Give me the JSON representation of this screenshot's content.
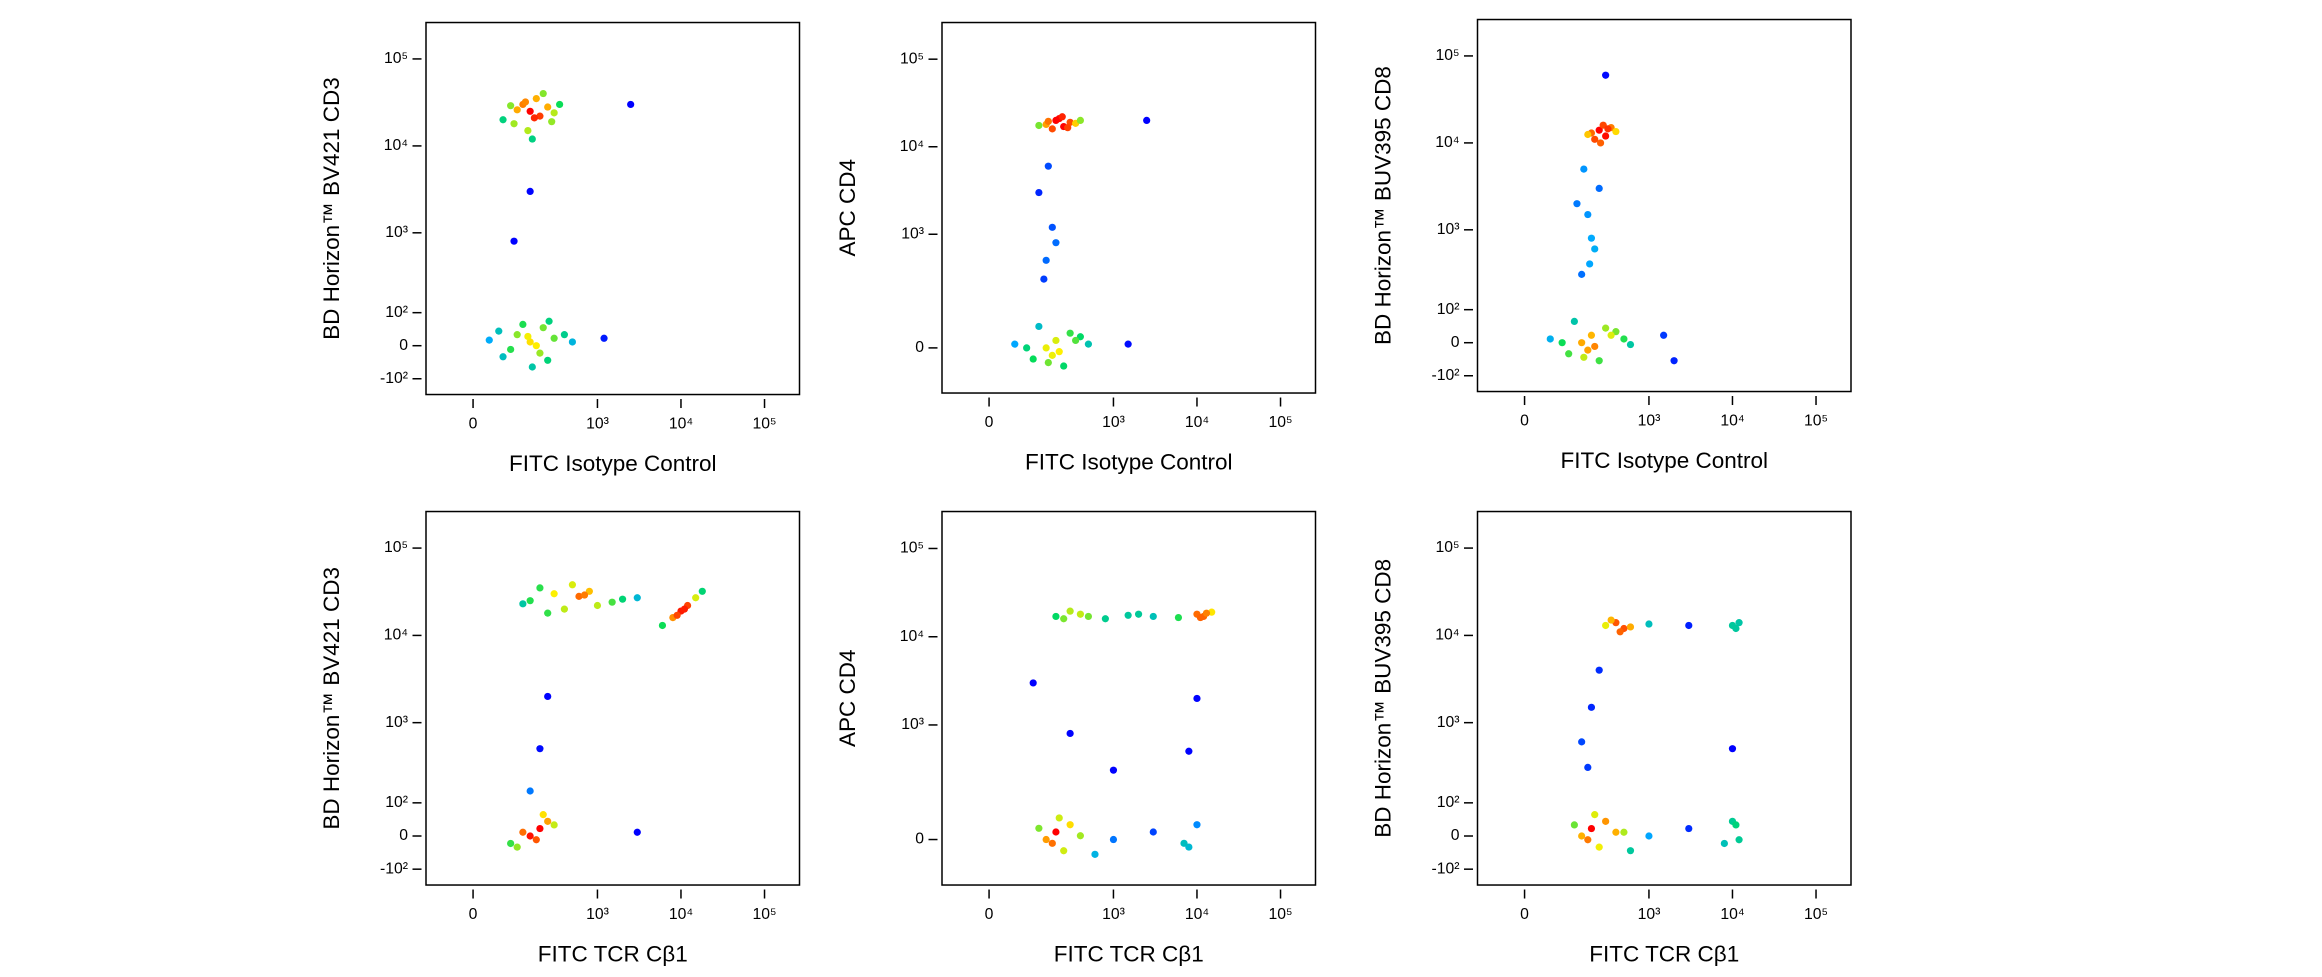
{
  "chart_data": [
    {
      "type": "scatter",
      "xlabel": "FITC Isotype Control",
      "ylabel": "BD Horizon™ BV421 CD3",
      "x": [
        150,
        120,
        200,
        90,
        250,
        180,
        60,
        300,
        140,
        220,
        100,
        170,
        130,
        280,
        80,
        160,
        350,
        150,
        100,
        200,
        50,
        300,
        250,
        120,
        180,
        80,
        400,
        30,
        220,
        160,
        500,
        140,
        60,
        260,
        2500,
        1200,
        90,
        150
      ],
      "values": [
        25000,
        30000,
        22000,
        18000,
        28000,
        35000,
        20000,
        24000,
        15000,
        40000,
        26000,
        21000,
        32000,
        19000,
        29000,
        12000,
        30000,
        10,
        30,
        -20,
        40,
        20,
        -40,
        60,
        0,
        -10,
        30,
        15,
        50,
        -60,
        10,
        25,
        -30,
        70,
        30000,
        20,
        800,
        3000
      ],
      "xlim": [
        -110,
        262144
      ],
      "ylim": [
        -170,
        262144
      ],
      "xticks": [
        0,
        {
          "value": 1000,
          "label": "10³"
        },
        {
          "value": 10000,
          "label": "10⁴"
        },
        {
          "value": 100000,
          "label": "10⁵"
        }
      ],
      "yticks": [
        {
          "value": -100,
          "label": "-10²"
        },
        0,
        {
          "value": 100,
          "label": "10²"
        },
        {
          "value": 1000,
          "label": "10³"
        },
        {
          "value": 10000,
          "label": "10⁴"
        },
        {
          "value": 100000,
          "label": "10⁵"
        }
      ]
    },
    {
      "type": "scatter",
      "xlabel": "FITC Isotype Control",
      "ylabel": "APC CD4",
      "x": [
        150,
        200,
        250,
        300,
        180,
        220,
        120,
        350,
        400,
        280,
        160,
        240,
        150,
        180,
        120,
        200,
        160,
        140,
        150,
        200,
        100,
        300,
        250,
        50,
        400,
        180,
        120,
        220,
        80,
        350,
        160,
        500,
        2500,
        1500
      ],
      "values": [
        18000,
        20000,
        17000,
        19000,
        16000,
        21000,
        17500,
        18500,
        20000,
        16500,
        19500,
        22000,
        500,
        1200,
        3000,
        800,
        6000,
        300,
        0,
        20,
        -30,
        40,
        -50,
        10,
        30,
        -20,
        60,
        -10,
        0,
        20,
        -40,
        10,
        20000,
        10
      ],
      "xlim": [
        -110,
        262144
      ],
      "ylim": [
        -150,
        262144
      ],
      "xticks": [
        0,
        {
          "value": 1000,
          "label": "10³"
        },
        {
          "value": 10000,
          "label": "10⁴"
        },
        {
          "value": 100000,
          "label": "10⁵"
        }
      ],
      "yticks": [
        0,
        {
          "value": 1000,
          "label": "10³"
        },
        {
          "value": 10000,
          "label": "10⁴"
        },
        {
          "value": 100000,
          "label": "10⁵"
        }
      ]
    },
    {
      "type": "scatter",
      "xlabel": "FITC Isotype Control",
      "ylabel": "BD Horizon™ BUV395 CD8",
      "x": [
        200,
        250,
        300,
        350,
        220,
        400,
        280,
        180,
        320,
        260,
        150,
        200,
        180,
        250,
        160,
        220,
        130,
        190,
        150,
        200,
        100,
        300,
        250,
        50,
        400,
        180,
        120,
        220,
        80,
        350,
        160,
        500,
        600,
        1500,
        2000,
        300
      ],
      "values": [
        13000,
        14000,
        12000,
        15000,
        11000,
        13500,
        16000,
        12500,
        14500,
        10000,
        300,
        800,
        1500,
        3000,
        5000,
        600,
        2000,
        400,
        0,
        20,
        -30,
        40,
        -50,
        10,
        30,
        -20,
        60,
        -10,
        0,
        20,
        -40,
        10,
        -5,
        20,
        -50,
        60000
      ],
      "xlim": [
        -110,
        262144
      ],
      "ylim": [
        -170,
        262144
      ],
      "xticks": [
        0,
        {
          "value": 1000,
          "label": "10³"
        },
        {
          "value": 10000,
          "label": "10⁴"
        },
        {
          "value": 100000,
          "label": "10⁵"
        }
      ],
      "yticks": [
        {
          "value": -100,
          "label": "-10²"
        },
        0,
        {
          "value": 100,
          "label": "10²"
        },
        {
          "value": 1000,
          "label": "10³"
        },
        {
          "value": 10000,
          "label": "10⁴"
        },
        {
          "value": 100000,
          "label": "10⁵"
        }
      ]
    },
    {
      "type": "scatter",
      "xlabel": "FITC TCR Cβ1",
      "ylabel": "BD Horizon™ BV421 CD3",
      "x": [
        150,
        300,
        600,
        1000,
        2000,
        200,
        400,
        800,
        1500,
        250,
        500,
        3000,
        120,
        700,
        6000,
        8000,
        10000,
        12000,
        15000,
        18000,
        9000,
        11000,
        200,
        250,
        150,
        150,
        200,
        100,
        250,
        180,
        120,
        300,
        80,
        220,
        3000
      ],
      "values": [
        25000,
        30000,
        28000,
        22000,
        26000,
        35000,
        20000,
        32000,
        24000,
        18000,
        38000,
        27000,
        23000,
        29000,
        13000,
        16000,
        19000,
        22000,
        27000,
        32000,
        17000,
        20000,
        500,
        2000,
        150,
        0,
        20,
        -30,
        40,
        -10,
        10,
        30,
        -20,
        60,
        10
      ],
      "xlim": [
        -110,
        262144
      ],
      "ylim": [
        -170,
        262144
      ],
      "xticks": [
        0,
        {
          "value": 1000,
          "label": "10³"
        },
        {
          "value": 10000,
          "label": "10⁴"
        },
        {
          "value": 100000,
          "label": "10⁵"
        }
      ],
      "yticks": [
        {
          "value": -100,
          "label": "-10²"
        },
        0,
        {
          "value": 100,
          "label": "10²"
        },
        {
          "value": 1000,
          "label": "10³"
        },
        {
          "value": 10000,
          "label": "10⁴"
        },
        {
          "value": 100000,
          "label": "10⁵"
        }
      ]
    },
    {
      "type": "scatter",
      "xlabel": "FITC TCR Cβ1",
      "ylabel": "APC CD4",
      "x": [
        200,
        400,
        800,
        1500,
        3000,
        6000,
        10000,
        12000,
        15000,
        250,
        300,
        2000,
        11000,
        13000,
        500,
        100,
        300,
        1000,
        8000,
        10000,
        150,
        200,
        250,
        300,
        180,
        400,
        120,
        1000,
        3000,
        8000,
        10000,
        7000,
        600,
        220
      ],
      "values": [
        17000,
        18000,
        16000,
        17500,
        17000,
        16500,
        18000,
        17000,
        19000,
        16000,
        19500,
        18000,
        16500,
        18500,
        17000,
        3000,
        800,
        300,
        500,
        2000,
        0,
        20,
        -30,
        40,
        -10,
        10,
        30,
        0,
        20,
        -20,
        40,
        -10,
        -40,
        60
      ],
      "xlim": [
        -110,
        262144
      ],
      "ylim": [
        -150,
        262144
      ],
      "xticks": [
        0,
        {
          "value": 1000,
          "label": "10³"
        },
        {
          "value": 10000,
          "label": "10⁴"
        },
        {
          "value": 100000,
          "label": "10⁵"
        }
      ],
      "yticks": [
        0,
        {
          "value": 1000,
          "label": "10³"
        },
        {
          "value": 10000,
          "label": "10⁴"
        },
        {
          "value": 100000,
          "label": "10⁵"
        }
      ]
    },
    {
      "type": "scatter",
      "xlabel": "FITC TCR Cβ1",
      "ylabel": "BD Horizon™ BUV395 CD8",
      "x": [
        300,
        400,
        500,
        1000,
        3000,
        10000,
        12000,
        350,
        450,
        600,
        11000,
        150,
        200,
        250,
        180,
        10000,
        150,
        200,
        250,
        300,
        180,
        400,
        120,
        1000,
        3000,
        8000,
        10000,
        12000,
        600,
        220,
        500,
        11000
      ],
      "values": [
        13000,
        14000,
        12000,
        13500,
        13000,
        13000,
        14000,
        15000,
        11000,
        12500,
        12000,
        600,
        1500,
        4000,
        300,
        500,
        0,
        20,
        -30,
        40,
        -10,
        10,
        30,
        0,
        20,
        -20,
        40,
        -10,
        -40,
        60,
        10,
        30
      ],
      "xlim": [
        -110,
        262144
      ],
      "ylim": [
        -170,
        262144
      ],
      "xticks": [
        0,
        {
          "value": 1000,
          "label": "10³"
        },
        {
          "value": 10000,
          "label": "10⁴"
        },
        {
          "value": 100000,
          "label": "10⁵"
        }
      ],
      "yticks": [
        {
          "value": -100,
          "label": "-10²"
        },
        0,
        {
          "value": 100,
          "label": "10²"
        },
        {
          "value": 1000,
          "label": "10³"
        },
        {
          "value": 10000,
          "label": "10⁴"
        },
        {
          "value": 100000,
          "label": "10⁵"
        }
      ]
    }
  ]
}
